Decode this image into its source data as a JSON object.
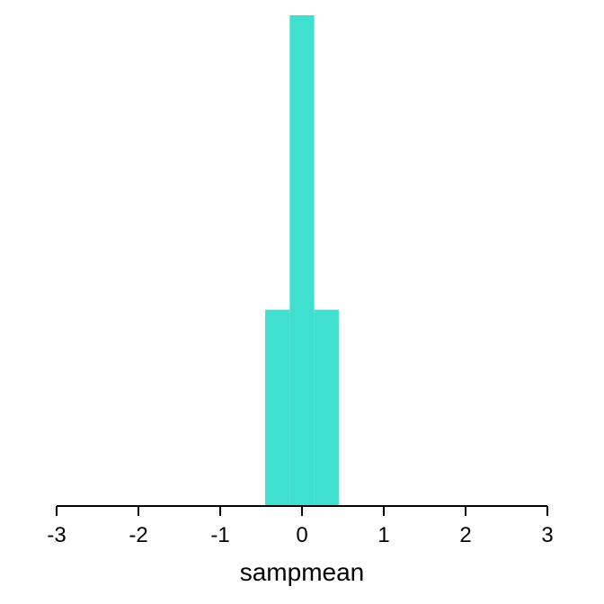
{
  "chart_data": {
    "type": "bar",
    "subtype": "histogram",
    "bins": [
      {
        "x0": -0.45,
        "x1": -0.15,
        "count": 2
      },
      {
        "x0": -0.15,
        "x1": 0.15,
        "count": 5
      },
      {
        "x0": 0.15,
        "x1": 0.45,
        "count": 2
      }
    ],
    "xlabel": "sampmean",
    "ylabel": "",
    "xlim": [
      -3,
      3
    ],
    "ylim": [
      0,
      5
    ],
    "xticks": [
      "-3",
      "-2",
      "-1",
      "0",
      "1",
      "2",
      "3"
    ],
    "xtick_values": [
      -3,
      -2,
      -1,
      0,
      1,
      2,
      3
    ],
    "grid": false,
    "legend": "none",
    "colors": {
      "bar": "#40E0D0",
      "axis": "#000000"
    }
  }
}
